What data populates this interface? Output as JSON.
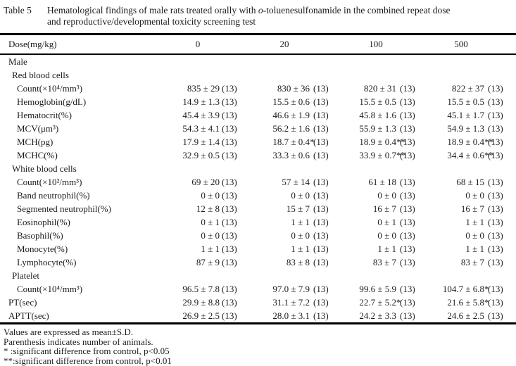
{
  "title": {
    "label": "Table 5",
    "line1_pre": "Hematological findings of male rats treated orally with ",
    "line1_italic": "o",
    "line1_post": "-toluenesulfonamide in the combined repeat dose",
    "line2": "and reproductive/developmental toxicity screening test"
  },
  "table": {
    "dose_header_label": "Dose(mg/kg)",
    "doses": [
      "0",
      "20",
      "100",
      "500"
    ],
    "rows": [
      {
        "label": "Male",
        "indent": 0
      },
      {
        "label": "Red blood cells",
        "indent": 1
      },
      {
        "label": "Count(×10⁴/mm³)",
        "indent": 2,
        "cells": [
          [
            "835 ± 29",
            "(13)"
          ],
          [
            "830 ± 36",
            "(13)"
          ],
          [
            "820 ± 31",
            "(13)"
          ],
          [
            "822 ± 37",
            "(13)"
          ]
        ]
      },
      {
        "label": "Hemoglobin(g/dL)",
        "indent": 2,
        "cells": [
          [
            "14.9 ± 1.3",
            "(13)"
          ],
          [
            "15.5 ± 0.6",
            "(13)"
          ],
          [
            "15.5 ± 0.5",
            "(13)"
          ],
          [
            "15.5 ± 0.5",
            "(13)"
          ]
        ]
      },
      {
        "label": "Hematocrit(%)",
        "indent": 2,
        "cells": [
          [
            "45.4 ± 3.9",
            "(13)"
          ],
          [
            "46.6 ± 1.9",
            "(13)"
          ],
          [
            "45.8 ± 1.6",
            "(13)"
          ],
          [
            "45.1 ± 1.7",
            "(13)"
          ]
        ]
      },
      {
        "label": "MCV(μm³)",
        "indent": 2,
        "cells": [
          [
            "54.3 ± 4.1",
            "(13)"
          ],
          [
            "56.2 ± 1.6",
            "(13)"
          ],
          [
            "55.9 ± 1.3",
            "(13)"
          ],
          [
            "54.9 ± 1.3",
            "(13)"
          ]
        ]
      },
      {
        "label": "MCH(pg)",
        "indent": 2,
        "cells": [
          [
            "17.9 ± 1.4",
            "(13)"
          ],
          [
            "18.7 ± 0.4*",
            "(13)"
          ],
          [
            "18.9 ± 0.4**",
            "(13)"
          ],
          [
            "18.9 ± 0.4**",
            "(13)"
          ]
        ]
      },
      {
        "label": "MCHC(%)",
        "indent": 2,
        "cells": [
          [
            "32.9 ± 0.5",
            "(13)"
          ],
          [
            "33.3 ± 0.6",
            "(13)"
          ],
          [
            "33.9 ± 0.7**",
            "(13)"
          ],
          [
            "34.4 ± 0.6**",
            "(13)"
          ]
        ]
      },
      {
        "label": "White blood cells",
        "indent": 1
      },
      {
        "label": "Count(×10²/mm³)",
        "indent": 2,
        "cells": [
          [
            "69 ± 20",
            "(13)"
          ],
          [
            "57 ± 14",
            "(13)"
          ],
          [
            "61 ± 18",
            "(13)"
          ],
          [
            "68 ± 15",
            "(13)"
          ]
        ]
      },
      {
        "label": "Band neutrophil(%)",
        "indent": 2,
        "cells": [
          [
            "0 ± 0",
            "(13)"
          ],
          [
            "0 ± 0",
            "(13)"
          ],
          [
            "0 ± 0",
            "(13)"
          ],
          [
            "0 ± 0",
            "(13)"
          ]
        ]
      },
      {
        "label": "Segmented neutrophil(%)",
        "indent": 2,
        "cells": [
          [
            "12 ± 8",
            "(13)"
          ],
          [
            "15 ± 7",
            "(13)"
          ],
          [
            "16 ± 7",
            "(13)"
          ],
          [
            "16 ± 7",
            "(13)"
          ]
        ]
      },
      {
        "label": "Eosinophil(%)",
        "indent": 2,
        "cells": [
          [
            "0 ± 1",
            "(13)"
          ],
          [
            "1 ± 1",
            "(13)"
          ],
          [
            "0 ± 1",
            "(13)"
          ],
          [
            "1 ± 1",
            "(13)"
          ]
        ]
      },
      {
        "label": "Basophil(%)",
        "indent": 2,
        "cells": [
          [
            "0 ± 0",
            "(13)"
          ],
          [
            "0 ± 0",
            "(13)"
          ],
          [
            "0 ± 0",
            "(13)"
          ],
          [
            "0 ± 0",
            "(13)"
          ]
        ]
      },
      {
        "label": "Monocyte(%)",
        "indent": 2,
        "cells": [
          [
            "1 ± 1",
            "(13)"
          ],
          [
            "1 ± 1",
            "(13)"
          ],
          [
            "1 ± 1",
            "(13)"
          ],
          [
            "1 ± 1",
            "(13)"
          ]
        ]
      },
      {
        "label": "Lymphocyte(%)",
        "indent": 2,
        "cells": [
          [
            "87 ± 9",
            "(13)"
          ],
          [
            "83 ± 8",
            "(13)"
          ],
          [
            "83 ± 7",
            "(13)"
          ],
          [
            "83 ± 7",
            "(13)"
          ]
        ]
      },
      {
        "label": "Platelet",
        "indent": 1
      },
      {
        "label": "Count(×10⁴/mm³)",
        "indent": 2,
        "cells": [
          [
            "96.5 ± 7.8",
            "(13)"
          ],
          [
            "97.0 ± 7.9",
            "(13)"
          ],
          [
            "99.6 ± 5.9",
            "(13)"
          ],
          [
            "104.7 ± 6.8*",
            "(13)"
          ]
        ]
      },
      {
        "label": "PT(sec)",
        "indent": 0,
        "cells": [
          [
            "29.9 ± 8.8",
            "(13)"
          ],
          [
            "31.1 ± 7.2",
            "(13)"
          ],
          [
            "22.7 ± 5.2*",
            "(13)"
          ],
          [
            "21.6 ± 5.8*",
            "(13)"
          ]
        ]
      },
      {
        "label": "APTT(sec)",
        "indent": 0,
        "cells": [
          [
            "26.9 ± 2.5",
            "(13)"
          ],
          [
            "28.0 ± 3.1",
            "(13)"
          ],
          [
            "24.2 ± 3.3",
            "(13)"
          ],
          [
            "24.6 ± 2.5",
            "(13)"
          ]
        ]
      }
    ]
  },
  "footnotes": [
    "Values are expressed as mean±S.D.",
    "Parenthesis indicates number of animals.",
    "* :significant difference from control, p<0.05",
    "**:significant difference from control, p<0.01"
  ]
}
